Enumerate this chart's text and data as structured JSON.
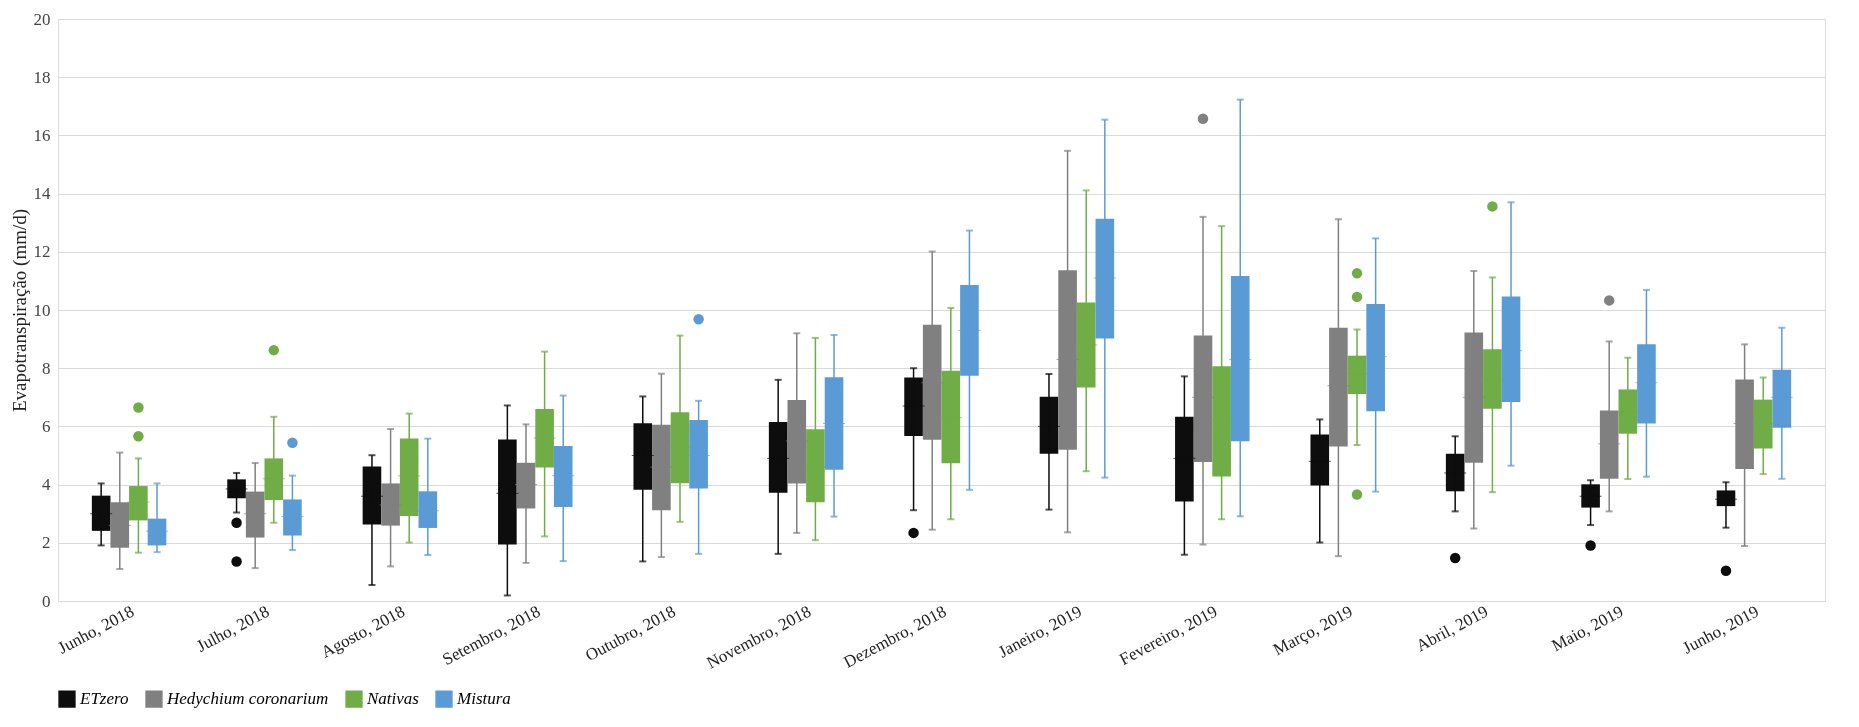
{
  "chart_data": {
    "type": "box",
    "ylabel": "Evapotranspiração (mm/d)",
    "ylim": [
      0,
      20
    ],
    "yticks": [
      0,
      2,
      4,
      6,
      8,
      10,
      12,
      14,
      16,
      18,
      20
    ],
    "grid": "y",
    "legend": "bottom",
    "categories": [
      "Junho, 2018",
      "Julho, 2018",
      "Agosto, 2018",
      "Setembro, 2018",
      "Outubro, 2018",
      "Novembro, 2018",
      "Dezembro, 2018",
      "Janeiro, 2019",
      "Fevereiro, 2019",
      "Março, 2019",
      "Abril, 2019",
      "Maio, 2019",
      "Junho, 2019"
    ],
    "series": [
      {
        "name": "ETzero",
        "color": "#0d0d0d",
        "boxes": [
          {
            "low": 1.91,
            "q1": 2.41,
            "median": 3.0,
            "q3": 3.62,
            "high": 4.04
          },
          {
            "low": 3.04,
            "q1": 3.53,
            "median": 3.85,
            "q3": 4.18,
            "high": 4.4,
            "outliers": [
              2.69,
              1.36
            ]
          },
          {
            "low": 0.55,
            "q1": 2.63,
            "median": 3.6,
            "q3": 4.62,
            "high": 5.01
          },
          {
            "low": 0.19,
            "q1": 1.94,
            "median": 3.7,
            "q3": 5.55,
            "high": 6.72
          },
          {
            "low": 1.36,
            "q1": 3.82,
            "median": 5.0,
            "q3": 6.11,
            "high": 7.03
          },
          {
            "low": 1.62,
            "q1": 3.72,
            "median": 4.9,
            "q3": 6.15,
            "high": 7.6
          },
          {
            "low": 3.12,
            "q1": 5.67,
            "median": 6.7,
            "q3": 7.68,
            "high": 8.0,
            "outliers": [
              2.34
            ]
          },
          {
            "low": 3.14,
            "q1": 5.06,
            "median": 6.0,
            "q3": 7.02,
            "high": 7.8
          },
          {
            "low": 1.59,
            "q1": 3.42,
            "median": 4.9,
            "q3": 6.33,
            "high": 7.72
          },
          {
            "low": 2.01,
            "q1": 3.97,
            "median": 4.8,
            "q3": 5.72,
            "high": 6.24
          },
          {
            "low": 3.08,
            "q1": 3.77,
            "median": 4.4,
            "q3": 5.06,
            "high": 5.66,
            "outliers": [
              1.48
            ]
          },
          {
            "low": 2.61,
            "q1": 3.21,
            "median": 3.6,
            "q3": 4.01,
            "high": 4.15,
            "outliers": [
              1.91
            ]
          },
          {
            "low": 2.52,
            "q1": 3.26,
            "median": 3.5,
            "q3": 3.8,
            "high": 4.08,
            "outliers": [
              1.04
            ]
          }
        ]
      },
      {
        "name": "Hedychium coronarium",
        "color": "#808080",
        "boxes": [
          {
            "low": 1.1,
            "q1": 1.83,
            "median": 2.6,
            "q3": 3.39,
            "high": 5.1
          },
          {
            "low": 1.13,
            "q1": 2.18,
            "median": 3.0,
            "q3": 3.76,
            "high": 4.74
          },
          {
            "low": 1.19,
            "q1": 2.59,
            "median": 3.3,
            "q3": 4.04,
            "high": 5.91
          },
          {
            "low": 1.31,
            "q1": 3.18,
            "median": 4.0,
            "q3": 4.75,
            "high": 6.07
          },
          {
            "low": 1.51,
            "q1": 3.12,
            "median": 4.6,
            "q3": 6.06,
            "high": 7.81
          },
          {
            "low": 2.34,
            "q1": 4.04,
            "median": 5.5,
            "q3": 6.91,
            "high": 9.2
          },
          {
            "low": 2.45,
            "q1": 5.54,
            "median": 7.5,
            "q3": 9.49,
            "high": 12.01
          },
          {
            "low": 2.36,
            "q1": 5.2,
            "median": 8.3,
            "q3": 11.37,
            "high": 15.47
          },
          {
            "low": 1.94,
            "q1": 4.78,
            "median": 7.0,
            "q3": 9.12,
            "high": 13.2,
            "outliers": [
              16.57
            ]
          },
          {
            "low": 1.54,
            "q1": 5.31,
            "median": 7.4,
            "q3": 9.39,
            "high": 13.12
          },
          {
            "low": 2.49,
            "q1": 4.75,
            "median": 7.0,
            "q3": 9.23,
            "high": 11.34
          },
          {
            "low": 3.08,
            "q1": 4.2,
            "median": 5.4,
            "q3": 6.55,
            "high": 8.92,
            "outliers": [
              10.33
            ]
          },
          {
            "low": 1.89,
            "q1": 4.54,
            "median": 6.1,
            "q3": 7.61,
            "high": 8.82
          }
        ]
      },
      {
        "name": "Nativas",
        "color": "#70ad47",
        "boxes": [
          {
            "low": 1.66,
            "q1": 2.77,
            "median": 3.4,
            "q3": 3.95,
            "high": 4.9,
            "outliers": [
              6.65,
              5.66
            ]
          },
          {
            "low": 2.69,
            "q1": 3.47,
            "median": 4.2,
            "q3": 4.9,
            "high": 6.33,
            "outliers": [
              8.62
            ]
          },
          {
            "low": 2.01,
            "q1": 2.92,
            "median": 4.3,
            "q3": 5.58,
            "high": 6.44
          },
          {
            "low": 2.22,
            "q1": 4.59,
            "median": 5.6,
            "q3": 6.6,
            "high": 8.57
          },
          {
            "low": 2.72,
            "q1": 4.05,
            "median": 5.3,
            "q3": 6.49,
            "high": 9.12
          },
          {
            "low": 2.09,
            "q1": 3.39,
            "median": 4.6,
            "q3": 5.9,
            "high": 9.04
          },
          {
            "low": 2.81,
            "q1": 4.73,
            "median": 6.3,
            "q3": 7.91,
            "high": 10.07
          },
          {
            "low": 4.46,
            "q1": 7.34,
            "median": 8.8,
            "q3": 10.26,
            "high": 14.11
          },
          {
            "low": 2.81,
            "q1": 4.28,
            "median": 6.2,
            "q3": 8.07,
            "high": 12.88
          },
          {
            "low": 5.36,
            "q1": 7.11,
            "median": 7.8,
            "q3": 8.43,
            "high": 9.33,
            "outliers": [
              11.26,
              10.45,
              3.66
            ]
          },
          {
            "low": 3.74,
            "q1": 6.61,
            "median": 7.6,
            "q3": 8.65,
            "high": 11.12,
            "outliers": [
              13.56
            ]
          },
          {
            "low": 4.19,
            "q1": 5.75,
            "median": 6.5,
            "q3": 7.27,
            "high": 8.36
          },
          {
            "low": 4.36,
            "q1": 5.24,
            "median": 6.1,
            "q3": 6.92,
            "high": 7.68
          }
        ]
      },
      {
        "name": "Mistura",
        "color": "#5b9bd5",
        "boxes": [
          {
            "low": 1.68,
            "q1": 1.91,
            "median": 2.4,
            "q3": 2.83,
            "high": 4.04
          },
          {
            "low": 1.75,
            "q1": 2.25,
            "median": 2.9,
            "q3": 3.49,
            "high": 4.31,
            "outliers": [
              5.44
            ]
          },
          {
            "low": 1.58,
            "q1": 2.51,
            "median": 3.1,
            "q3": 3.77,
            "high": 5.58
          },
          {
            "low": 1.37,
            "q1": 3.23,
            "median": 4.3,
            "q3": 5.33,
            "high": 7.06
          },
          {
            "low": 1.62,
            "q1": 3.87,
            "median": 5.0,
            "q3": 6.22,
            "high": 6.88,
            "outliers": [
              9.68
            ]
          },
          {
            "low": 2.9,
            "q1": 4.51,
            "median": 6.1,
            "q3": 7.69,
            "high": 9.14
          },
          {
            "low": 3.82,
            "q1": 7.74,
            "median": 9.3,
            "q3": 10.86,
            "high": 12.73
          },
          {
            "low": 4.24,
            "q1": 9.02,
            "median": 11.1,
            "q3": 13.14,
            "high": 16.54
          },
          {
            "low": 2.91,
            "q1": 5.49,
            "median": 8.3,
            "q3": 11.17,
            "high": 17.23
          },
          {
            "low": 3.76,
            "q1": 6.52,
            "median": 8.4,
            "q3": 10.21,
            "high": 12.46
          },
          {
            "low": 4.65,
            "q1": 6.84,
            "median": 8.6,
            "q3": 10.46,
            "high": 13.7
          },
          {
            "low": 4.27,
            "q1": 6.1,
            "median": 7.5,
            "q3": 8.82,
            "high": 10.69
          },
          {
            "low": 4.2,
            "q1": 5.95,
            "median": 7.0,
            "q3": 7.95,
            "high": 9.39
          }
        ]
      }
    ]
  }
}
